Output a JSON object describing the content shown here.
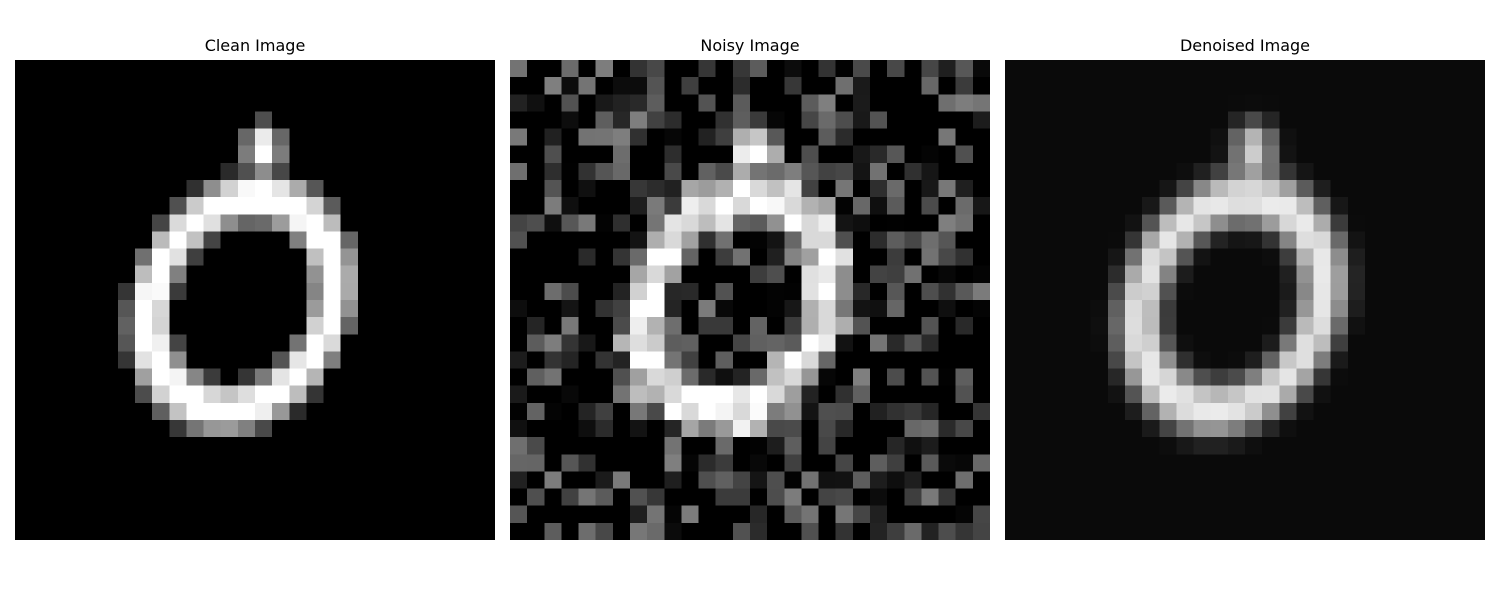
{
  "panels": [
    {
      "title": "Clean Image"
    },
    {
      "title": "Noisy Image"
    },
    {
      "title": "Denoised Image"
    }
  ],
  "image_grid": {
    "rows": 28,
    "cols": 28,
    "colormap": "gray"
  }
}
